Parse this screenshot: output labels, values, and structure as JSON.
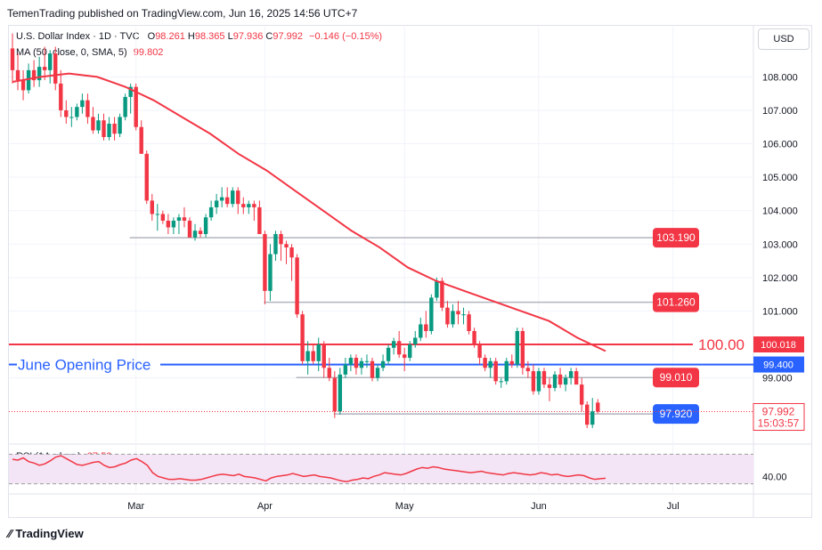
{
  "publisher_line": "TemenTrading published on TradingView.com, Jun 16, 2025 14:56 UTC+7",
  "legend": {
    "symbol": "U.S. Dollar Index · 1D · TVC",
    "open_label": "O",
    "open": "98.261",
    "high_label": "H",
    "high": "98.365",
    "low_label": "L",
    "low": "97.936",
    "close_label": "C",
    "close": "97.992",
    "change": "−0.146 (−0.15%)",
    "ma_label": "MA (50, close, 0, SMA, 5)",
    "ma_value": "99.802",
    "rsi_label": "RSI (14, close)",
    "rsi_value": "37.53"
  },
  "currency_button": "USD",
  "footer_brand": "TradingView",
  "colors": {
    "up": "#089981",
    "down": "#f23645",
    "ma": "#f23645",
    "blue_line": "#2962ff",
    "rsi_line": "#f23645",
    "rsi_band": "#f3e5f5",
    "level_line": "#b2b5be"
  },
  "chart_data": {
    "type": "candlestick",
    "y_axis": {
      "ticks": [
        "108.000",
        "107.000",
        "106.000",
        "105.000",
        "104.000",
        "103.000",
        "102.000",
        "101.000",
        "99.000"
      ],
      "range": [
        97.1,
        109.5
      ]
    },
    "x_axis": {
      "ticks": [
        "Mar",
        "Apr",
        "May",
        "Jun",
        "Jul"
      ]
    },
    "candles": [
      [
        108.85,
        109.3,
        107.8,
        108.2
      ],
      [
        108.2,
        108.7,
        107.6,
        107.9
      ],
      [
        107.9,
        108.2,
        107.3,
        107.6
      ],
      [
        107.6,
        108.4,
        107.5,
        108.2
      ],
      [
        108.2,
        108.5,
        107.7,
        107.9
      ],
      [
        107.9,
        108.6,
        107.7,
        108.3
      ],
      [
        108.3,
        108.9,
        107.9,
        108.2
      ],
      [
        108.2,
        108.8,
        107.8,
        108.7
      ],
      [
        108.7,
        108.9,
        107.6,
        107.8
      ],
      [
        107.8,
        108.2,
        106.8,
        107.0
      ],
      [
        107.0,
        107.3,
        106.6,
        106.8
      ],
      [
        106.8,
        107.1,
        106.5,
        106.8
      ],
      [
        106.8,
        107.2,
        106.7,
        107.1
      ],
      [
        107.1,
        107.5,
        106.9,
        107.3
      ],
      [
        107.3,
        107.5,
        106.6,
        106.8
      ],
      [
        106.8,
        107.1,
        106.3,
        106.4
      ],
      [
        106.4,
        106.9,
        106.3,
        106.7
      ],
      [
        106.7,
        106.9,
        106.1,
        106.2
      ],
      [
        106.2,
        106.8,
        106.1,
        106.6
      ],
      [
        106.6,
        106.8,
        106.1,
        106.3
      ],
      [
        106.3,
        106.9,
        106.2,
        106.8
      ],
      [
        106.8,
        107.5,
        106.7,
        107.4
      ],
      [
        107.4,
        107.8,
        106.9,
        107.7
      ],
      [
        107.7,
        107.8,
        106.4,
        106.5
      ],
      [
        106.5,
        106.7,
        105.7,
        105.7
      ],
      [
        105.7,
        105.8,
        104.2,
        104.3
      ],
      [
        104.3,
        104.5,
        103.7,
        103.9
      ],
      [
        103.9,
        104.2,
        103.4,
        103.9
      ],
      [
        103.9,
        104.0,
        103.6,
        103.7
      ],
      [
        103.7,
        103.9,
        103.3,
        103.5
      ],
      [
        103.5,
        103.8,
        103.3,
        103.7
      ],
      [
        103.7,
        103.9,
        103.3,
        103.8
      ],
      [
        103.8,
        104.1,
        103.5,
        103.7
      ],
      [
        103.7,
        103.8,
        103.2,
        103.2
      ],
      [
        103.2,
        103.6,
        103.1,
        103.4
      ],
      [
        103.4,
        103.5,
        103.2,
        103.3
      ],
      [
        103.3,
        103.9,
        103.2,
        103.8
      ],
      [
        103.8,
        104.3,
        103.7,
        104.1
      ],
      [
        104.1,
        104.5,
        103.9,
        104.3
      ],
      [
        104.3,
        104.7,
        104.1,
        104.4
      ],
      [
        104.4,
        104.7,
        104.1,
        104.2
      ],
      [
        104.2,
        104.7,
        104.1,
        104.6
      ],
      [
        104.6,
        104.7,
        103.9,
        104.2
      ],
      [
        104.2,
        104.4,
        103.9,
        104.1
      ],
      [
        104.1,
        104.3,
        103.9,
        104.2
      ],
      [
        104.2,
        104.3,
        103.7,
        104.1
      ],
      [
        104.1,
        104.3,
        103.4,
        103.3
      ],
      [
        103.3,
        103.4,
        101.2,
        101.6
      ],
      [
        101.6,
        103.0,
        101.3,
        102.7
      ],
      [
        102.7,
        103.4,
        102.5,
        103.3
      ],
      [
        103.3,
        103.4,
        102.5,
        103.0
      ],
      [
        103.0,
        103.1,
        102.4,
        102.9
      ],
      [
        102.9,
        103.0,
        101.9,
        102.6
      ],
      [
        102.6,
        102.7,
        100.8,
        100.9
      ],
      [
        100.9,
        101.0,
        99.4,
        99.5
      ],
      [
        99.5,
        100.1,
        99.1,
        99.8
      ],
      [
        99.8,
        100.0,
        99.4,
        99.5
      ],
      [
        99.5,
        100.2,
        99.2,
        100.0
      ],
      [
        100.0,
        100.1,
        99.0,
        99.3
      ],
      [
        99.3,
        99.6,
        98.9,
        99.0
      ],
      [
        99.0,
        99.2,
        97.8,
        98.0
      ],
      [
        98.0,
        99.3,
        97.9,
        99.1
      ],
      [
        99.1,
        99.6,
        99.0,
        99.4
      ],
      [
        99.4,
        99.7,
        99.2,
        99.6
      ],
      [
        99.6,
        99.7,
        99.1,
        99.3
      ],
      [
        99.3,
        99.6,
        99.1,
        99.5
      ],
      [
        99.5,
        99.7,
        99.3,
        99.5
      ],
      [
        99.5,
        99.6,
        98.9,
        99.0
      ],
      [
        99.0,
        99.4,
        98.9,
        99.3
      ],
      [
        99.3,
        99.7,
        99.2,
        99.5
      ],
      [
        99.5,
        100.0,
        99.4,
        99.9
      ],
      [
        99.9,
        100.2,
        99.7,
        100.1
      ],
      [
        100.1,
        100.4,
        99.6,
        99.7
      ],
      [
        99.7,
        99.9,
        99.2,
        99.6
      ],
      [
        99.6,
        100.1,
        99.5,
        100.0
      ],
      [
        100.0,
        100.4,
        99.9,
        100.2
      ],
      [
        100.2,
        100.8,
        100.1,
        100.6
      ],
      [
        100.6,
        101.0,
        100.2,
        100.4
      ],
      [
        100.4,
        101.5,
        100.3,
        101.4
      ],
      [
        101.4,
        102.0,
        101.3,
        101.9
      ],
      [
        101.9,
        102.0,
        101.0,
        101.1
      ],
      [
        101.1,
        101.3,
        100.5,
        100.6
      ],
      [
        100.6,
        101.2,
        100.5,
        101.0
      ],
      [
        101.0,
        101.3,
        100.6,
        100.9
      ],
      [
        100.9,
        101.1,
        100.6,
        100.9
      ],
      [
        100.9,
        101.0,
        100.3,
        100.4
      ],
      [
        100.4,
        100.5,
        99.9,
        100.0
      ],
      [
        100.0,
        100.1,
        99.4,
        99.6
      ],
      [
        99.6,
        99.7,
        99.2,
        99.3
      ],
      [
        99.3,
        99.6,
        99.0,
        99.5
      ],
      [
        99.5,
        99.6,
        98.8,
        98.9
      ],
      [
        98.9,
        99.0,
        98.7,
        98.9
      ],
      [
        98.9,
        99.6,
        98.8,
        99.5
      ],
      [
        99.5,
        99.7,
        99.3,
        99.4
      ],
      [
        99.4,
        100.5,
        99.3,
        100.4
      ],
      [
        100.4,
        100.5,
        99.1,
        99.3
      ],
      [
        99.3,
        99.5,
        99.0,
        99.2
      ],
      [
        99.2,
        99.4,
        98.5,
        98.6
      ],
      [
        98.6,
        99.3,
        98.5,
        99.2
      ],
      [
        99.2,
        99.3,
        98.7,
        98.8
      ],
      [
        98.8,
        99.0,
        98.3,
        98.7
      ],
      [
        98.7,
        99.2,
        98.6,
        99.1
      ],
      [
        99.1,
        99.3,
        98.7,
        98.8
      ],
      [
        98.8,
        99.1,
        98.6,
        99.0
      ],
      [
        99.0,
        99.3,
        98.8,
        99.2
      ],
      [
        99.2,
        99.3,
        98.9,
        98.8
      ],
      [
        98.8,
        99.0,
        98.0,
        98.2
      ],
      [
        98.2,
        98.3,
        97.5,
        97.6
      ],
      [
        97.6,
        98.4,
        97.5,
        98.0
      ],
      [
        98.261,
        98.365,
        97.936,
        97.992
      ]
    ],
    "ma50": [
      [
        0,
        107.85
      ],
      [
        10,
        108.0
      ],
      [
        20,
        108.1
      ],
      [
        30,
        108.0
      ],
      [
        40,
        107.7
      ],
      [
        50,
        107.3
      ],
      [
        60,
        106.8
      ],
      [
        70,
        106.3
      ],
      [
        80,
        105.7
      ],
      [
        90,
        105.2
      ],
      [
        100,
        104.6
      ],
      [
        110,
        104.0
      ],
      [
        120,
        103.4
      ],
      [
        130,
        102.9
      ],
      [
        140,
        102.3
      ],
      [
        150,
        101.9
      ],
      [
        160,
        101.6
      ],
      [
        170,
        101.3
      ],
      [
        180,
        101.0
      ],
      [
        190,
        100.7
      ],
      [
        200,
        100.2
      ],
      [
        210,
        99.8
      ]
    ],
    "levels": [
      {
        "label": "103.190",
        "value": 103.19,
        "from_index": 21,
        "box_color": "#f23645"
      },
      {
        "label": "101.260",
        "value": 101.26,
        "from_index": 46,
        "box_color": "#f23645"
      },
      {
        "label": "99.010",
        "value": 99.01,
        "from_index": 52,
        "box_color": "#f23645"
      },
      {
        "label": "97.920",
        "value": 97.92,
        "from_index": 59,
        "box_color": "#2962ff"
      }
    ],
    "horizontal_lines": [
      {
        "label": "100.00",
        "value": 100.0,
        "color": "#f23645",
        "price_tag": "100.018"
      },
      {
        "label": "June Opening Price",
        "value": 99.4,
        "color": "#2962ff",
        "price_tag": "99.400"
      }
    ],
    "last_price": {
      "value": "97.992",
      "countdown": "15:03:57"
    },
    "rsi": {
      "tick": "40.00",
      "range": [
        20,
        80
      ],
      "band": [
        30,
        70
      ],
      "values": [
        63,
        62,
        65,
        60,
        58,
        55,
        57,
        61,
        66,
        68,
        64,
        60,
        56,
        55,
        57,
        59,
        60,
        55,
        52,
        53,
        56,
        58,
        62,
        64,
        60,
        55,
        45,
        40,
        38,
        36,
        36,
        37,
        36,
        35,
        35,
        36,
        38,
        40,
        42,
        43,
        42,
        41,
        43,
        40,
        39,
        38,
        36,
        34,
        38,
        40,
        41,
        42,
        44,
        42,
        40,
        41,
        42,
        40,
        39,
        38,
        36,
        34,
        33,
        35,
        36,
        38,
        37,
        40,
        42,
        45,
        44,
        43,
        42,
        44,
        47,
        50,
        52,
        51,
        53,
        52,
        50,
        49,
        48,
        47,
        46,
        45,
        46,
        47,
        45,
        44,
        43,
        42,
        44,
        45,
        44,
        43,
        42,
        43,
        45,
        44,
        42,
        43,
        41,
        40,
        41,
        42,
        41,
        38,
        36,
        37,
        37.53
      ]
    }
  }
}
